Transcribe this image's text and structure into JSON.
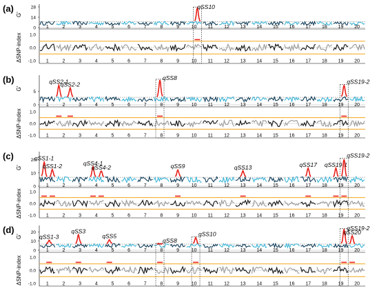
{
  "chart_data": {
    "type": "line",
    "chromosomes": [
      "1",
      "2",
      "3",
      "4",
      "5",
      "6",
      "7",
      "8",
      "9",
      "10",
      "11",
      "12",
      "13",
      "14",
      "15",
      "16",
      "17",
      "18",
      "19",
      "20"
    ],
    "colors": {
      "dark": "#0d3b57",
      "light": "#3bb4d6",
      "significant": "#e8201a",
      "threshold": "#f2a51c"
    },
    "panels": [
      {
        "label": "(a)",
        "g_axis": {
          "label": "G'",
          "ticks": [
            "0",
            "14",
            "28"
          ],
          "max": 28
        },
        "delta_axis": {
          "label": "ΔSNP-index",
          "ticks": [
            "-1.0",
            "0.0",
            "1.0"
          ]
        },
        "qtls": [
          {
            "name": "qSS10",
            "chromosome": 10,
            "pos": 0.7,
            "peak": 26,
            "highlight": true
          }
        ]
      },
      {
        "label": "(b)",
        "g_axis": {
          "label": "G'",
          "ticks": [
            "0",
            "5"
          ],
          "max": 10
        },
        "delta_axis": {
          "label": "ΔSNP-index",
          "ticks": [
            "-1.0",
            "0.0",
            "1.0"
          ]
        },
        "qtls": [
          {
            "name": "qSS2-1",
            "chromosome": 2,
            "pos": 0.2,
            "peak": 7,
            "highlight": false
          },
          {
            "name": "qSS2-2",
            "chromosome": 2,
            "pos": 0.9,
            "peak": 6,
            "highlight": false
          },
          {
            "name": "qSS8",
            "chromosome": 8,
            "pos": 0.4,
            "peak": 9,
            "highlight": true
          },
          {
            "name": "qSS19-2",
            "chromosome": 19,
            "pos": 0.7,
            "peak": 7,
            "highlight": true
          }
        ]
      },
      {
        "label": "(c)",
        "g_axis": {
          "label": "G'",
          "ticks": [
            "0",
            "10",
            "20"
          ],
          "max": 24
        },
        "delta_axis": {
          "label": "ΔSNP-index",
          "ticks": [
            "-1.0",
            "0.0",
            "1.0"
          ]
        },
        "qtls": [
          {
            "name": "qSS1-1",
            "chromosome": 1,
            "pos": 0.3,
            "peak": 18,
            "highlight": false
          },
          {
            "name": "qSS1-2",
            "chromosome": 1,
            "pos": 0.8,
            "peak": 12,
            "highlight": false
          },
          {
            "name": "qSS4-1",
            "chromosome": 4,
            "pos": 0.3,
            "peak": 14,
            "highlight": false
          },
          {
            "name": "qSS4-2",
            "chromosome": 4,
            "pos": 0.8,
            "peak": 11,
            "highlight": false
          },
          {
            "name": "qSS9",
            "chromosome": 9,
            "pos": 0.5,
            "peak": 12,
            "highlight": false
          },
          {
            "name": "qSS13",
            "chromosome": 13,
            "pos": 0.5,
            "peak": 11,
            "highlight": false
          },
          {
            "name": "qSS17",
            "chromosome": 17,
            "pos": 0.5,
            "peak": 13,
            "highlight": false
          },
          {
            "name": "qSS19-1",
            "chromosome": 19,
            "pos": 0.2,
            "peak": 13,
            "highlight": false
          },
          {
            "name": "qSS19-2",
            "chromosome": 19,
            "pos": 0.7,
            "peak": 20,
            "highlight": true
          }
        ]
      },
      {
        "label": "(d)",
        "g_axis": {
          "label": "G'",
          "ticks": [
            "0",
            "10",
            "20"
          ],
          "max": 24
        },
        "delta_axis": {
          "label": "ΔSNP-index",
          "ticks": [
            "-1.0",
            "0.0",
            "1.0"
          ]
        },
        "qtls": [
          {
            "name": "qSS1-3",
            "chromosome": 1,
            "pos": 0.6,
            "peak": 10,
            "highlight": false
          },
          {
            "name": "qSS3",
            "chromosome": 3,
            "pos": 0.4,
            "peak": 16,
            "highlight": false
          },
          {
            "name": "qSS5",
            "chromosome": 5,
            "pos": 0.3,
            "peak": 11,
            "highlight": false
          },
          {
            "name": "qSS8",
            "chromosome": 8,
            "pos": 0.4,
            "peak": 6,
            "highlight": true
          },
          {
            "name": "qSS10",
            "chromosome": 10,
            "pos": 0.6,
            "peak": 13,
            "highlight": true
          },
          {
            "name": "qSS19-2",
            "chromosome": 19,
            "pos": 0.7,
            "peak": 22,
            "highlight": true
          },
          {
            "name": "qSS20",
            "chromosome": 20,
            "pos": 0.2,
            "peak": 15,
            "highlight": false
          }
        ]
      }
    ]
  }
}
